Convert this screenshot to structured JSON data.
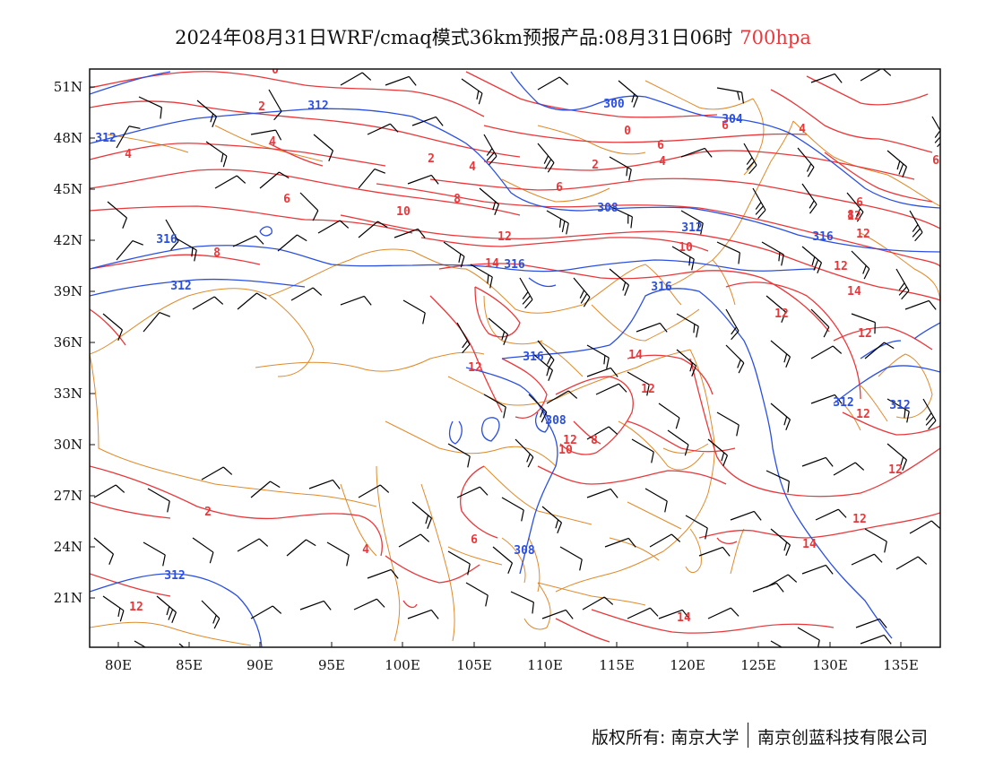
{
  "header": {
    "title": "2024年08月31日WRF/cmaq模式36km预报产品:08月31日06时",
    "level": "700hpa",
    "level_color": "#e8383b"
  },
  "axes": {
    "lat_labels": [
      "51N",
      "48N",
      "45N",
      "42N",
      "39N",
      "36N",
      "33N",
      "30N",
      "27N",
      "24N",
      "21N"
    ],
    "lon_labels": [
      "80E",
      "85E",
      "90E",
      "95E",
      "100E",
      "105E",
      "110E",
      "115E",
      "120E",
      "125E",
      "130E",
      "135E"
    ]
  },
  "contours": {
    "height_color": "#2b4fe0",
    "temperature_color": "#e8383b",
    "border_color": "#e08a2a",
    "wind_color": "#000000",
    "height_labels": [
      "312",
      "312",
      "300",
      "304",
      "308",
      "312",
      "316",
      "316",
      "312",
      "316",
      "316",
      "316",
      "308",
      "308",
      "312"
    ],
    "temperature_labels": [
      "0",
      "2",
      "4",
      "4",
      "2",
      "4",
      "6",
      "6",
      "0",
      "2",
      "4",
      "6",
      "8",
      "10",
      "8",
      "6",
      "12",
      "14",
      "10",
      "12",
      "14",
      "12",
      "12",
      "12",
      "12",
      "12",
      "14",
      "12",
      "12",
      "10",
      "8",
      "6",
      "4",
      "2",
      "14",
      "12",
      "12",
      "12",
      "12",
      "14",
      "4",
      "6",
      "8",
      "6"
    ]
  },
  "footer": {
    "copyright": "版权所有: 南京大学",
    "company": "南京创蓝科技有限公司"
  }
}
